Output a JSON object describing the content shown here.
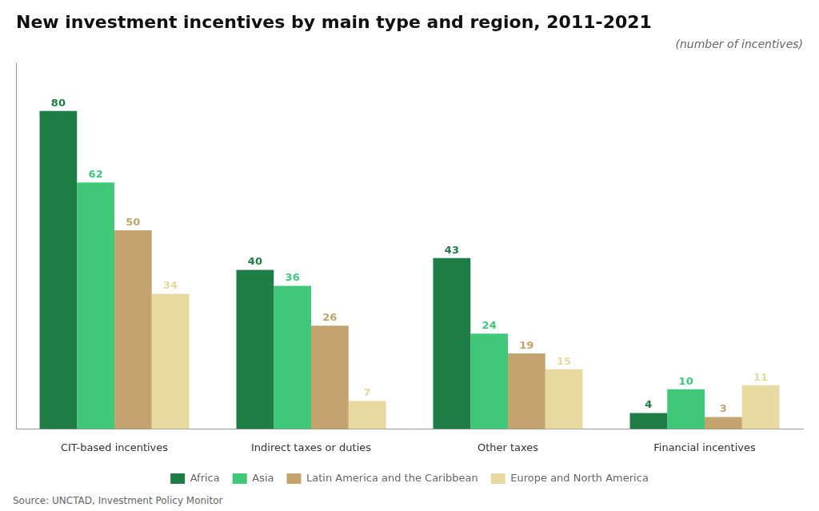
{
  "chart_data": {
    "type": "bar",
    "title": "New investment incentives by main type and region, 2011-2021",
    "subtitle": "(number of incentives)",
    "annotations": [
      "Source: UNCTAD, Investment Policy Monitor"
    ],
    "categories": [
      "CIT-based incentives",
      "Indirect taxes or duties",
      "Other taxes",
      "Financial incentives"
    ],
    "series": [
      {
        "name": "Africa",
        "color": "#1e7d44",
        "values": [
          80,
          40,
          43,
          4
        ]
      },
      {
        "name": "Asia",
        "color": "#3ec878",
        "values": [
          62,
          36,
          24,
          10
        ]
      },
      {
        "name": "Latin America and the Caribbean",
        "color": "#c4a46e",
        "values": [
          50,
          26,
          19,
          3
        ]
      },
      {
        "name": "Europe and North America",
        "color": "#e8d9a0",
        "values": [
          34,
          7,
          15,
          11
        ]
      }
    ],
    "ylim": [
      0,
      92
    ],
    "grid": false,
    "legend": "bottom",
    "data_labels": true,
    "tick_labels": "x"
  }
}
